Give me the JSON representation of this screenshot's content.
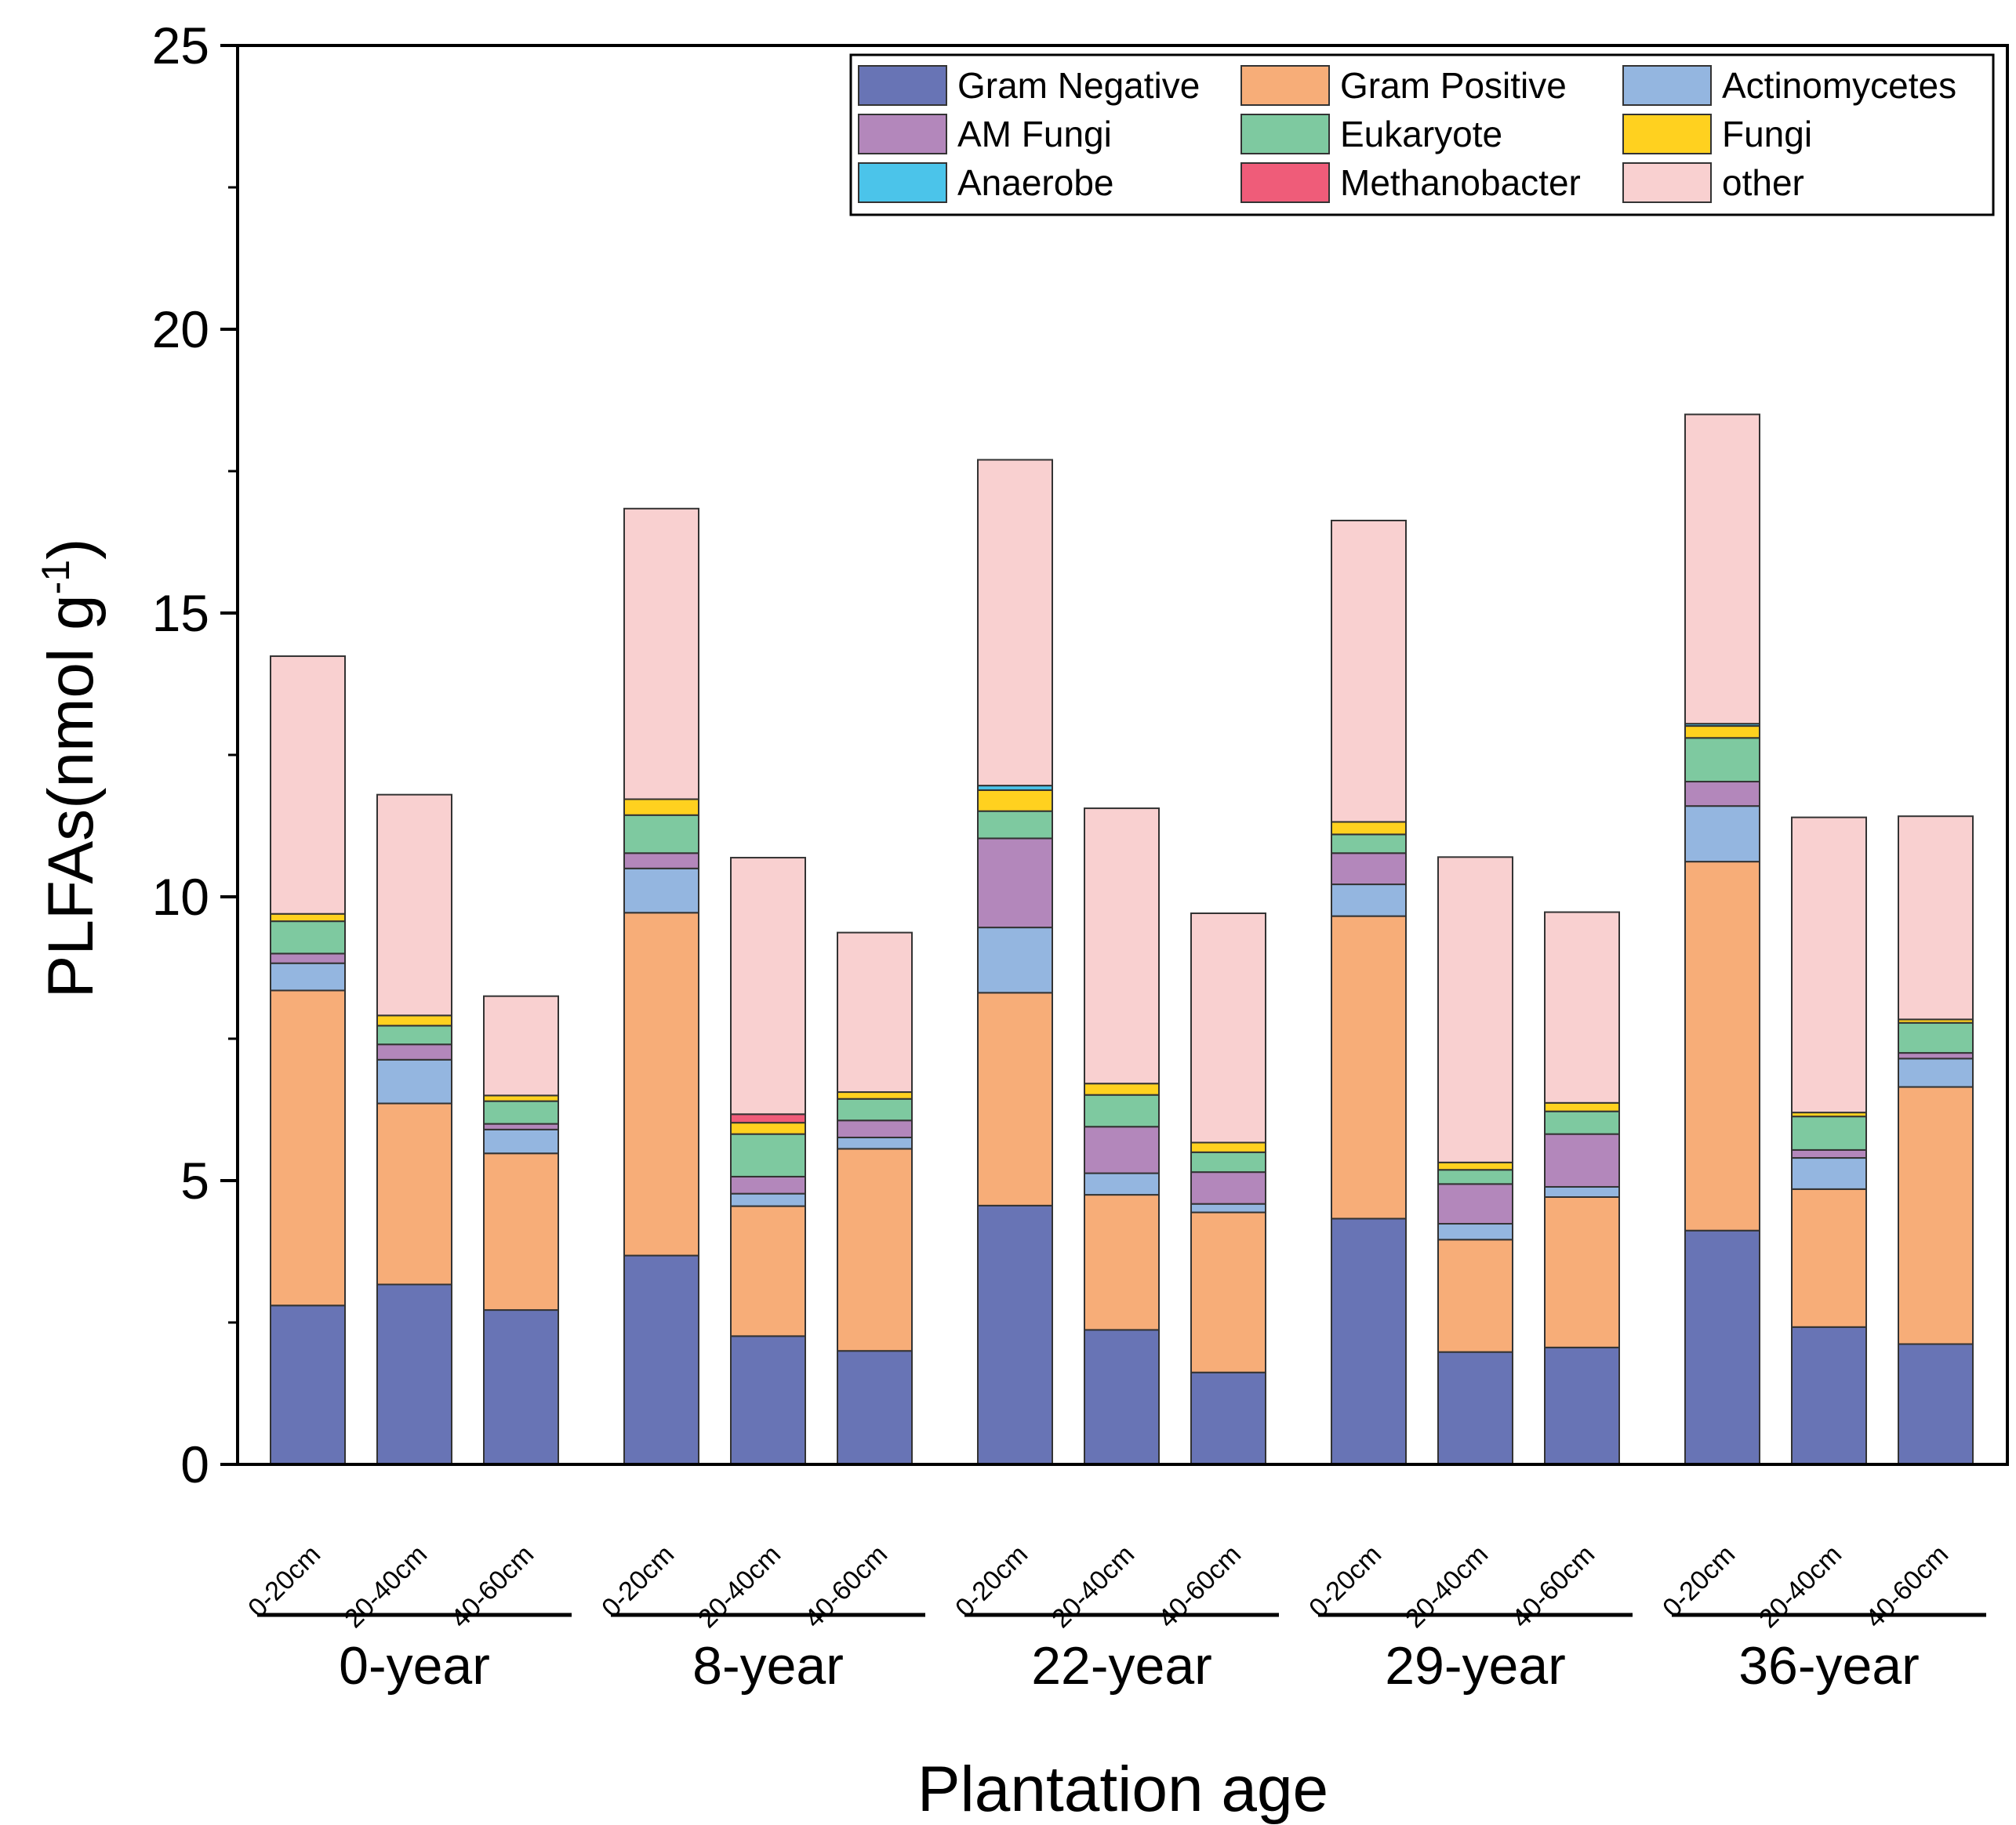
{
  "chart_data": {
    "type": "stacked-bar",
    "ylabel": "PLFAs(nmol g",
    "ylabel_superscript": "-1",
    "ylabel_close": ")",
    "xlabel": "Plantation age",
    "ylim": [
      0,
      25
    ],
    "yticks": [
      0,
      5,
      10,
      15,
      20,
      25
    ],
    "grid": false,
    "legend_position": "top-right",
    "groups": [
      "0-year",
      "8-year",
      "22-year",
      "29-year",
      "36-year"
    ],
    "depths": [
      "0-20cm",
      "20-40cm",
      "40-60cm"
    ],
    "series": [
      {
        "name": "Gram Negative",
        "color": "#6874b5",
        "values": [
          2.8,
          3.17,
          2.72,
          3.68,
          2.26,
          2.0,
          4.56,
          2.37,
          1.62,
          4.33,
          1.98,
          2.06,
          4.12,
          2.42,
          2.12
        ]
      },
      {
        "name": "Gram Positive",
        "color": "#f7ad78",
        "values": [
          5.55,
          3.19,
          2.76,
          6.04,
          2.29,
          3.56,
          3.75,
          2.38,
          2.82,
          5.33,
          1.98,
          2.65,
          6.5,
          2.43,
          4.53
        ]
      },
      {
        "name": "Actinomycetes",
        "color": "#94b6e0",
        "values": [
          0.48,
          0.77,
          0.42,
          0.78,
          0.22,
          0.2,
          1.15,
          0.38,
          0.15,
          0.56,
          0.28,
          0.18,
          0.98,
          0.55,
          0.5
        ]
      },
      {
        "name": "AM Fungi",
        "color": "#b387bb",
        "values": [
          0.17,
          0.27,
          0.1,
          0.27,
          0.3,
          0.3,
          1.57,
          0.82,
          0.56,
          0.55,
          0.7,
          0.93,
          0.43,
          0.14,
          0.1
        ]
      },
      {
        "name": "Eukaryote",
        "color": "#7ec9a0",
        "values": [
          0.57,
          0.33,
          0.4,
          0.67,
          0.75,
          0.38,
          0.48,
          0.56,
          0.35,
          0.33,
          0.25,
          0.4,
          0.77,
          0.59,
          0.53
        ]
      },
      {
        "name": "Fungi",
        "color": "#ffd11f",
        "values": [
          0.13,
          0.18,
          0.1,
          0.28,
          0.2,
          0.12,
          0.37,
          0.2,
          0.17,
          0.22,
          0.13,
          0.15,
          0.21,
          0.07,
          0.06
        ]
      },
      {
        "name": "Anaerobe",
        "color": "#4bc4ea",
        "values": [
          0.0,
          0.0,
          0.0,
          0.0,
          0.0,
          0.0,
          0.08,
          0.0,
          0.0,
          0.0,
          0.0,
          0.0,
          0.04,
          0.0,
          0.0
        ]
      },
      {
        "name": "Methanobacter",
        "color": "#ef5c79",
        "values": [
          0.0,
          0.0,
          0.0,
          0.0,
          0.15,
          0.0,
          0.0,
          0.0,
          0.0,
          0.0,
          0.0,
          0.0,
          0.0,
          0.0,
          0.0
        ]
      },
      {
        "name": "other",
        "color": "#f9d0d0",
        "values": [
          4.54,
          3.89,
          1.75,
          5.12,
          4.52,
          2.81,
          5.74,
          4.85,
          4.04,
          5.31,
          5.38,
          3.36,
          5.45,
          5.2,
          3.58
        ]
      }
    ]
  }
}
